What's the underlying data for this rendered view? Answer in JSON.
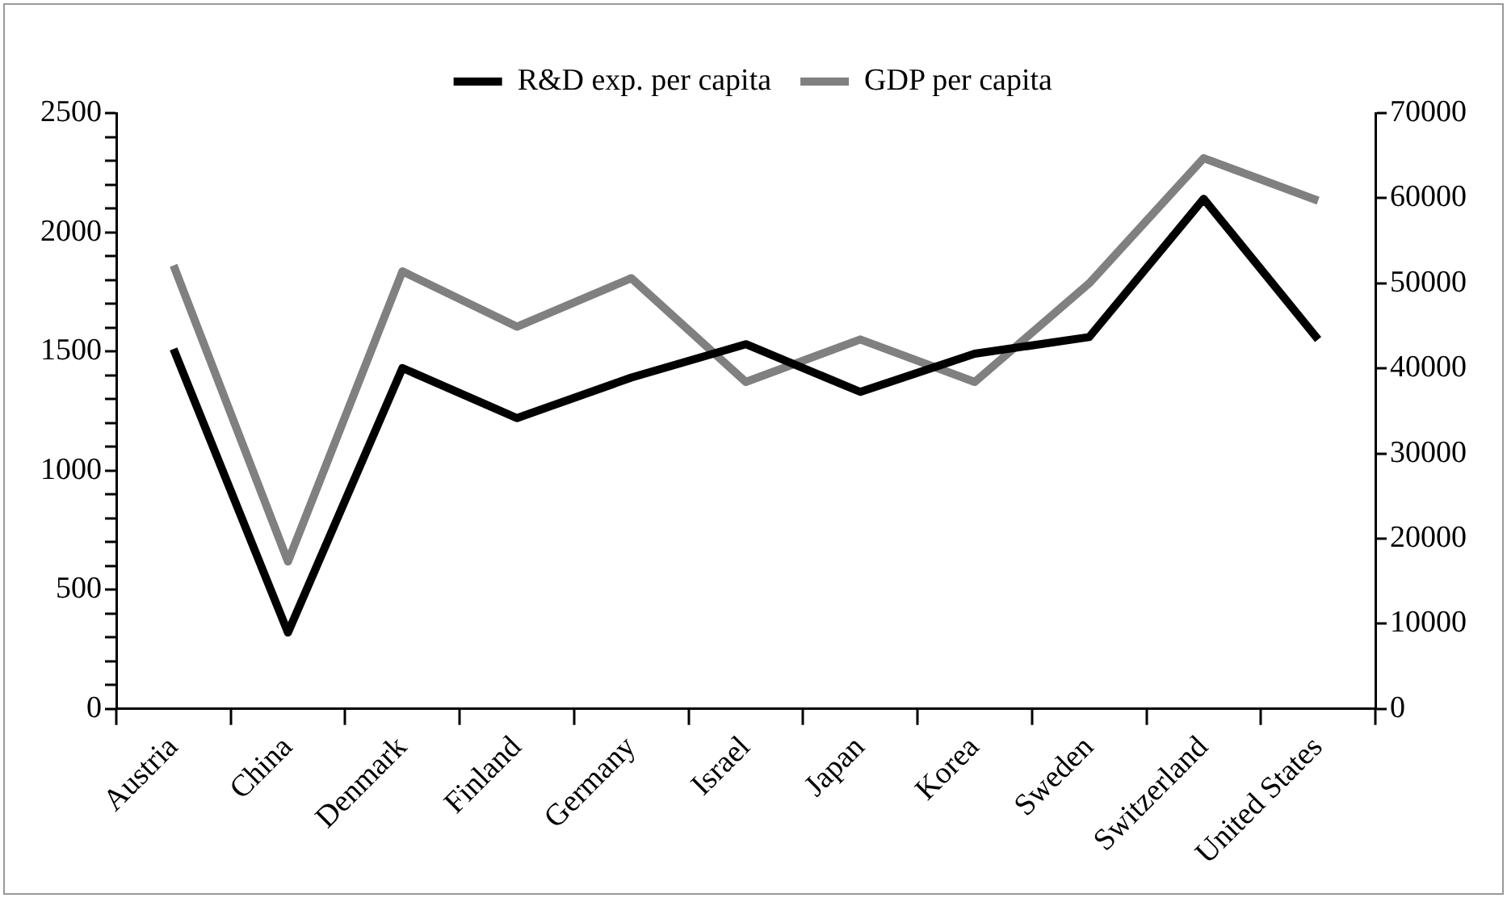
{
  "chart_data": {
    "type": "line",
    "categories": [
      "Austria",
      "China",
      "Denmark",
      "Finland",
      "Germany",
      "Israel",
      "Japan",
      "Korea",
      "Sweden",
      "Switzerland",
      "United States"
    ],
    "series": [
      {
        "name": "R&D exp. per capita",
        "color": "#000000",
        "values": [
          1510,
          320,
          1430,
          1220,
          1390,
          1530,
          1330,
          1490,
          1560,
          2140,
          1550
        ]
      },
      {
        "name": "GDP per capita",
        "color": "#808080",
        "axis": "y2",
        "values": [
          52100,
          17300,
          51400,
          44900,
          50600,
          38400,
          43400,
          38400,
          50000,
          64700,
          59700
        ]
      }
    ],
    "ylim": [
      0,
      2500
    ],
    "yticks": [
      0,
      {
        "value": 100,
        "label": null
      },
      {
        "value": 200,
        "label": null
      },
      {
        "value": 300,
        "label": null
      },
      {
        "value": 400,
        "label": null
      },
      500,
      {
        "value": 600,
        "label": null
      },
      {
        "value": 700,
        "label": null
      },
      {
        "value": 800,
        "label": null
      },
      {
        "value": 900,
        "label": null
      },
      1000,
      {
        "value": 1100,
        "label": null
      },
      {
        "value": 1200,
        "label": null
      },
      {
        "value": 1300,
        "label": null
      },
      {
        "value": 1400,
        "label": null
      },
      1500,
      {
        "value": 1600,
        "label": null
      },
      {
        "value": 1700,
        "label": null
      },
      {
        "value": 1800,
        "label": null
      },
      {
        "value": 1900,
        "label": null
      },
      2000,
      {
        "value": 2100,
        "label": null
      },
      {
        "value": 2200,
        "label": null
      },
      {
        "value": 2300,
        "label": null
      },
      {
        "value": 2400,
        "label": null
      },
      2500
    ],
    "y2lim": [
      0,
      70000
    ],
    "y2ticks": [
      0,
      10000,
      20000,
      30000,
      40000,
      50000,
      60000,
      70000
    ],
    "legend": "top",
    "grid": false,
    "marker": "none",
    "line_style": "solid"
  }
}
